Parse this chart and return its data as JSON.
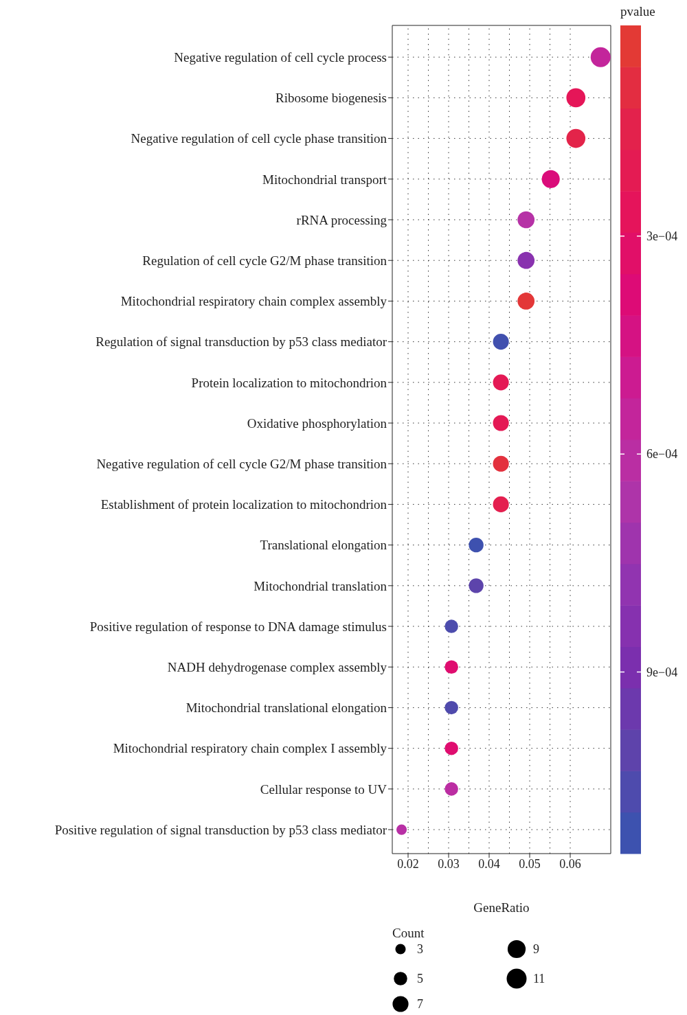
{
  "chart_data": {
    "type": "bubble",
    "orientation": "horizontal",
    "categories": [
      "Negative regulation of cell cycle process",
      "Ribosome biogenesis",
      "Negative regulation of cell cycle phase transition",
      "Mitochondrial transport",
      "rRNA processing",
      "Regulation of cell cycle G2/M phase transition",
      "Mitochondrial respiratory chain complex assembly",
      "Regulation of signal transduction by p53 class mediator",
      "Protein localization to mitochondrion",
      "Oxidative phosphorylation",
      "Negative regulation of cell cycle G2/M phase transition",
      "Establishment of protein localization to mitochondrion",
      "Translational elongation",
      "Mitochondrial translation",
      "Positive regulation of response to DNA damage stimulus",
      "NADH dehydrogenase complex assembly",
      "Mitochondrial translational elongation",
      "Mitochondrial respiratory chain complex I assembly",
      "Cellular response to UV",
      "Positive regulation of signal transduction by p53 class mediator"
    ],
    "values": [
      0.0675,
      0.0614,
      0.0614,
      0.0552,
      0.0491,
      0.0491,
      0.0491,
      0.0429,
      0.0429,
      0.0429,
      0.0429,
      0.0429,
      0.0368,
      0.0368,
      0.0307,
      0.0307,
      0.0307,
      0.0307,
      0.0307,
      0.0184
    ],
    "sizes": [
      11,
      10,
      10,
      9,
      8,
      8,
      8,
      7,
      7,
      7,
      7,
      7,
      6,
      6,
      5,
      5,
      5,
      5,
      5,
      3
    ],
    "cvalues": [
      0.00055,
      0.00025,
      0.00014,
      0.0004,
      0.00063,
      0.00082,
      5e-05,
      0.00111,
      0.00022,
      0.00022,
      8e-05,
      0.00018,
      0.00112,
      0.00101,
      0.00107,
      0.00035,
      0.00106,
      0.00035,
      0.0006,
      0.00062
    ],
    "xlim": [
      0.0161,
      0.07
    ],
    "xticks": [
      0.02,
      0.03,
      0.04,
      0.05,
      0.06
    ],
    "xlabel": "GeneRatio",
    "clabel": "pvalue",
    "clim": [
      0.00115,
      1e-05
    ],
    "cticks": [
      {
        "value": 0.0003,
        "label": "3e−04"
      },
      {
        "value": 0.0006,
        "label": "6e−04"
      },
      {
        "value": 0.0009,
        "label": "9e−04"
      }
    ],
    "legend_title": "Count",
    "size_legend": [
      3,
      5,
      7,
      9,
      11
    ],
    "grid": true,
    "marker": "circle"
  }
}
